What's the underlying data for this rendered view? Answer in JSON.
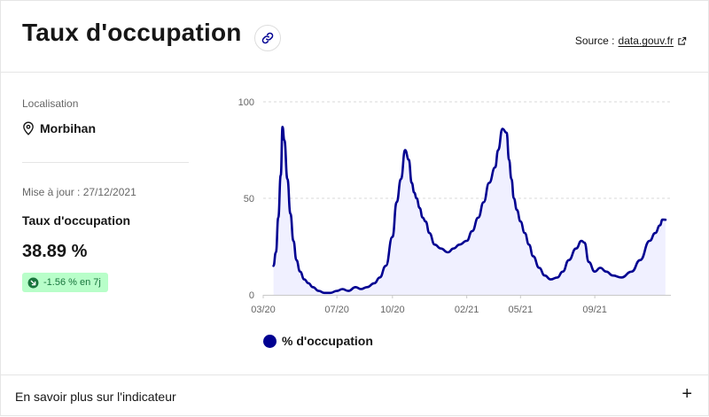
{
  "header": {
    "title": "Taux d'occupation",
    "source_prefix": "Source :",
    "source_link": "data.gouv.fr"
  },
  "sidebar": {
    "location_label": "Localisation",
    "location_value": "Morbihan",
    "update_text": "Mise à jour : 27/12/2021",
    "indicator_label": "Taux d'occupation",
    "indicator_value": "38.89 %",
    "change_badge": "-1.56 % en 7j"
  },
  "legend": {
    "label": "% d'occupation"
  },
  "footer": {
    "label": "En savoir plus sur l'indicateur",
    "expand_symbol": "+"
  },
  "colors": {
    "series": "#000091",
    "area_fill": "#f0f0ff",
    "badge_bg": "#b8fec9",
    "badge_text": "#18753c"
  },
  "chart_data": {
    "type": "area",
    "title": "",
    "xlabel": "",
    "ylabel": "",
    "x_tick_labels": [
      "03/20",
      "07/20",
      "10/20",
      "02/21",
      "05/21",
      "09/21"
    ],
    "y_tick_labels": [
      "0",
      "50",
      "100"
    ],
    "ylim": [
      0,
      100
    ],
    "grid": "horizontal dashed",
    "legend_position": "bottom-left",
    "series": [
      {
        "name": "% d'occupation",
        "x": [
          "2020-03-18",
          "2020-03-22",
          "2020-03-26",
          "2020-03-30",
          "2020-04-02",
          "2020-04-05",
          "2020-04-10",
          "2020-04-15",
          "2020-04-20",
          "2020-04-25",
          "2020-05-01",
          "2020-05-08",
          "2020-05-15",
          "2020-05-22",
          "2020-06-01",
          "2020-06-10",
          "2020-06-20",
          "2020-07-01",
          "2020-07-10",
          "2020-07-20",
          "2020-08-01",
          "2020-08-10",
          "2020-08-20",
          "2020-09-01",
          "2020-09-10",
          "2020-09-20",
          "2020-10-01",
          "2020-10-08",
          "2020-10-15",
          "2020-10-22",
          "2020-10-28",
          "2020-11-02",
          "2020-11-06",
          "2020-11-10",
          "2020-11-15",
          "2020-11-20",
          "2020-11-25",
          "2020-12-01",
          "2020-12-10",
          "2020-12-20",
          "2021-01-01",
          "2021-01-10",
          "2021-01-20",
          "2021-02-01",
          "2021-02-10",
          "2021-02-20",
          "2021-03-01",
          "2021-03-10",
          "2021-03-20",
          "2021-03-25",
          "2021-04-01",
          "2021-04-08",
          "2021-04-12",
          "2021-04-16",
          "2021-04-20",
          "2021-04-25",
          "2021-05-01",
          "2021-05-08",
          "2021-05-15",
          "2021-05-22",
          "2021-06-01",
          "2021-06-10",
          "2021-06-20",
          "2021-07-01",
          "2021-07-10",
          "2021-07-20",
          "2021-08-01",
          "2021-08-10",
          "2021-08-15",
          "2021-08-22",
          "2021-09-01",
          "2021-09-10",
          "2021-09-20",
          "2021-10-01",
          "2021-10-15",
          "2021-11-01",
          "2021-11-15",
          "2021-12-01",
          "2021-12-10",
          "2021-12-18",
          "2021-12-22",
          "2021-12-27"
        ],
        "values": [
          15,
          22,
          40,
          62,
          87,
          80,
          60,
          42,
          28,
          18,
          12,
          8,
          6,
          4,
          2,
          1,
          1,
          2,
          3,
          2,
          4,
          3,
          4,
          6,
          9,
          15,
          30,
          48,
          60,
          75,
          70,
          58,
          53,
          50,
          45,
          40,
          38,
          32,
          26,
          24,
          22,
          24,
          26,
          28,
          33,
          40,
          48,
          58,
          66,
          75,
          86,
          84,
          70,
          60,
          50,
          44,
          38,
          32,
          26,
          20,
          14,
          10,
          8,
          9,
          12,
          18,
          24,
          28,
          27,
          17,
          12,
          14,
          12,
          10,
          9,
          12,
          18,
          28,
          32,
          36,
          39,
          38.89
        ]
      }
    ]
  }
}
